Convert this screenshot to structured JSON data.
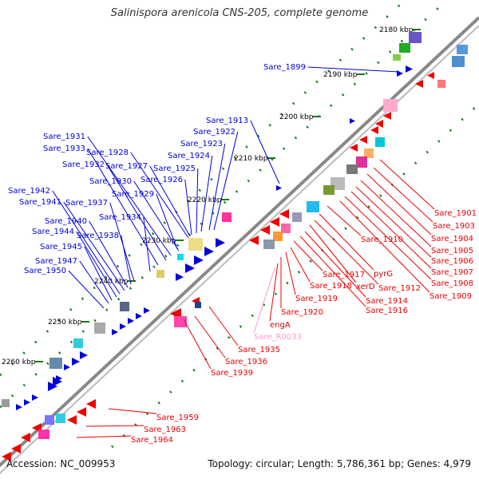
{
  "title": "Salinispora arenicola CNS-205, complete genome",
  "footer": {
    "accession": "Accession: NC_009953",
    "summary": "Topology: circular; Length: 5,786,361 bp; Genes: 4,979"
  },
  "colors": {
    "forward_gene": "#0000dd",
    "reverse_gene": "#ee0000",
    "rna_gene": "#ff99cc",
    "backbone": "#888888",
    "tick": "#1a7a1a"
  },
  "kbp_ticks": [
    "2180 kbp",
    "2190 kbp",
    "2200 kbp",
    "2210 kbp",
    "2220 kbp",
    "2230 kbp",
    "2240 kbp",
    "2250 kbp",
    "2260 kbp"
  ],
  "forward_labels": [
    "Sare_1899",
    "Sare_1913",
    "Sare_1922",
    "Sare_1923",
    "Sare_1924",
    "Sare_1925",
    "Sare_1926",
    "Sare_1927",
    "Sare_1928",
    "Sare_1929",
    "Sare_1930",
    "Sare_1931",
    "Sare_1932",
    "Sare_1933",
    "Sare_1934",
    "Sare_1937",
    "Sare_1938",
    "Sare_1940",
    "Sare_1941",
    "Sare_1942",
    "Sare_1944",
    "Sare_1945",
    "Sare_1947",
    "Sare_1950"
  ],
  "reverse_labels": [
    "Sare_1901",
    "Sare_1903",
    "Sare_1904",
    "Sare_1905",
    "Sare_1906",
    "Sare_1907",
    "Sare_1908",
    "Sare_1909",
    "Sare_1910",
    "pyrG",
    "Sare_1912",
    "xerD",
    "Sare_1914",
    "Sare_1916",
    "Sare_1917",
    "Sare_1918",
    "Sare_1919",
    "Sare_1920",
    "engA",
    "Sare_R0033",
    "Sare_1935",
    "Sare_1936",
    "Sare_1939",
    "Sare_1959",
    "Sare_1963",
    "Sare_1964"
  ]
}
